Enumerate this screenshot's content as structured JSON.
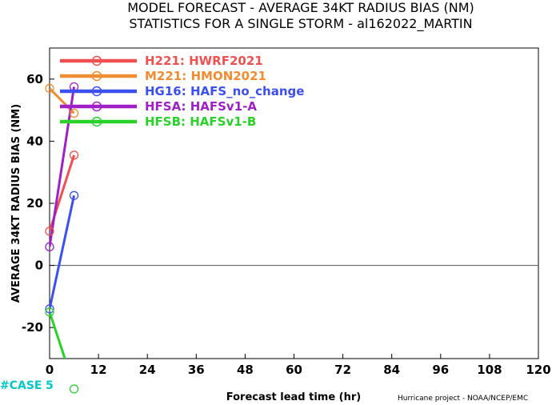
{
  "chart_data": {
    "type": "line",
    "title": "MODEL FORECAST - AVERAGE 34KT RADIUS BIAS (NM)",
    "subtitle": "STATISTICS FOR A SINGLE STORM - al162022_MARTIN",
    "xlabel": "Forecast lead time (hr)",
    "ylabel": "AVERAGE 34KT RADIUS BIAS (NM)",
    "xlim": [
      0,
      120
    ],
    "ylim": [
      -30,
      70
    ],
    "xticks": [
      0,
      12,
      24,
      36,
      48,
      60,
      72,
      84,
      96,
      108,
      120
    ],
    "yticks": [
      -20,
      0,
      20,
      40,
      60
    ],
    "grid": false,
    "zero_line": true,
    "legend_position": "top-left",
    "series": [
      {
        "name": "H221: HWRF2021",
        "color": "#f05050",
        "x": [
          0,
          6
        ],
        "y": [
          11,
          35.5
        ]
      },
      {
        "name": "M221: HMON2021",
        "color": "#f08c32",
        "x": [
          0,
          6
        ],
        "y": [
          57,
          49
        ]
      },
      {
        "name": "HG16: HAFS_no_change",
        "color": "#3c50f0",
        "x": [
          0,
          6
        ],
        "y": [
          -14,
          22.5
        ]
      },
      {
        "name": "HFSA: HAFSv1-A",
        "color": "#a020c8",
        "x": [
          0,
          6
        ],
        "y": [
          6,
          57.5
        ]
      },
      {
        "name": "HFSB: HAFSv1-B",
        "color": "#28d228",
        "x": [
          0,
          6
        ],
        "y": [
          -15,
          -39
        ]
      }
    ],
    "case_counts": {
      "label": "#CASE",
      "counts": [
        "5"
      ]
    }
  },
  "credit": "Hurricane project - NOAA/NCEP/EMC"
}
